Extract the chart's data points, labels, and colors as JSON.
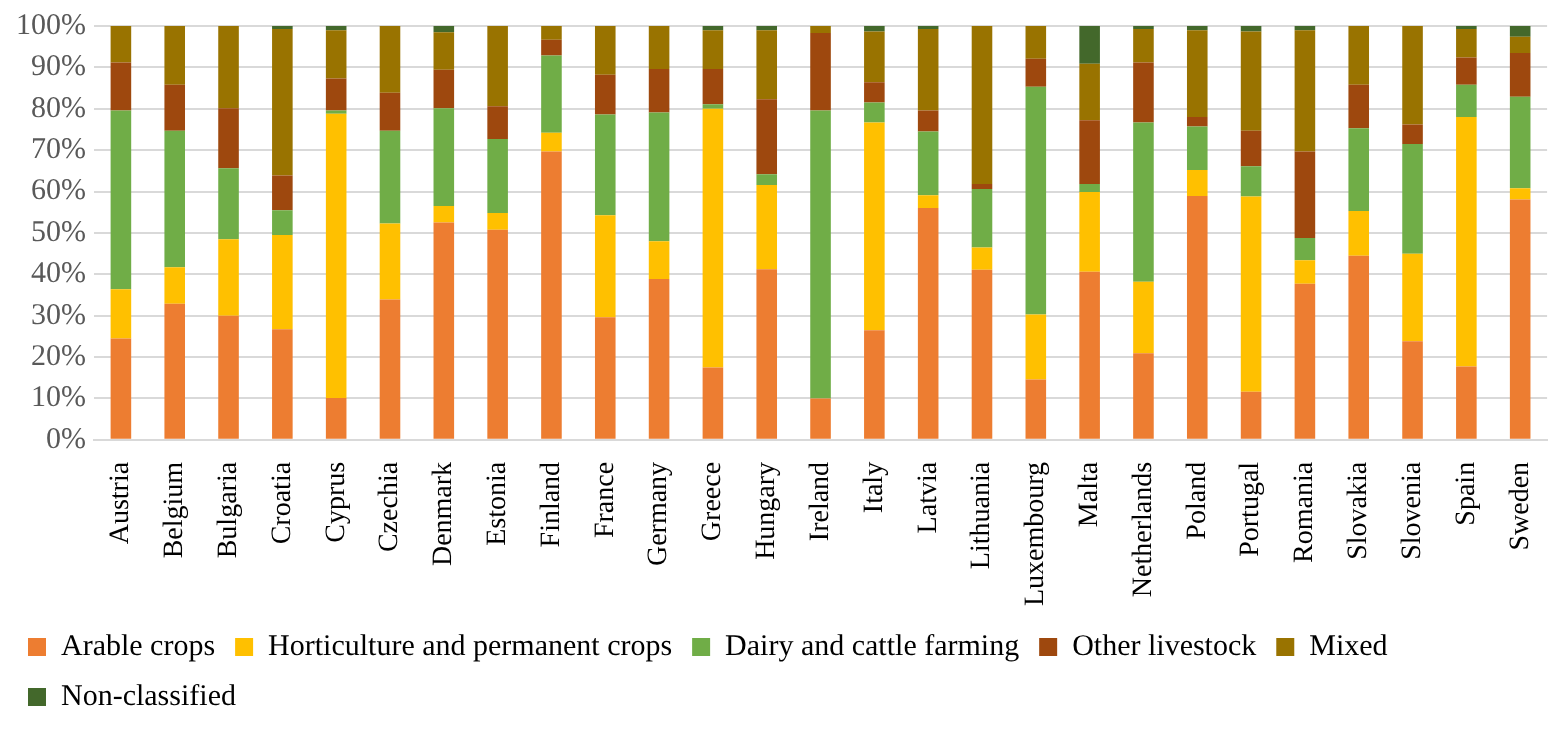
{
  "chart_data": {
    "type": "bar",
    "stacked": true,
    "grid": "y",
    "legend": "bottom",
    "categories": [
      "Austria",
      "Belgium",
      "Bulgaria",
      "Croatia",
      "Cyprus",
      "Czechia",
      "Denmark",
      "Estonia",
      "Finland",
      "France",
      "Germany",
      "Greece",
      "Hungary",
      "Ireland",
      "Italy",
      "Latvia",
      "Lithuania",
      "Luxembourg",
      "Malta",
      "Netherlands",
      "Poland",
      "Portugal",
      "Romania",
      "Slovakia",
      "Slovenia",
      "Spain",
      "Sweden"
    ],
    "ylim": [
      0,
      100
    ],
    "yticks": [
      {
        "value": 0,
        "label": "0%"
      },
      {
        "value": 10,
        "label": "10%"
      },
      {
        "value": 20,
        "label": "20%"
      },
      {
        "value": 30,
        "label": "30%"
      },
      {
        "value": 40,
        "label": "40%"
      },
      {
        "value": 50,
        "label": "50%"
      },
      {
        "value": 60,
        "label": "60%"
      },
      {
        "value": 70,
        "label": "70%"
      },
      {
        "value": 80,
        "label": "80%"
      },
      {
        "value": 90,
        "label": "90%"
      },
      {
        "value": 100,
        "label": "100%"
      }
    ],
    "series": [
      {
        "name": "Arable crops",
        "color": "#ed7d31",
        "values": [
          24.5,
          32.9,
          30,
          26.7,
          10.1,
          33.9,
          52.5,
          50.8,
          69.7,
          29.6,
          38.9,
          17.5,
          41.2,
          10,
          26.5,
          56,
          41.1,
          14.6,
          40.6,
          20.9,
          58.9,
          11.6,
          37.7,
          44.5,
          23.8,
          17.7,
          58.1
        ]
      },
      {
        "name": "Horticulture and permanent crops",
        "color": "#ffc000",
        "values": [
          11.9,
          8.8,
          18.5,
          22.8,
          68.7,
          18.4,
          4,
          4,
          4.5,
          24.7,
          9.1,
          62.5,
          20.4,
          0,
          50.2,
          3.1,
          5.4,
          15.7,
          19.3,
          17.3,
          6.3,
          47.2,
          5.7,
          10.8,
          21.2,
          60.3,
          2.7
        ]
      },
      {
        "name": "Dairy and cattle farming",
        "color": "#70ad47",
        "values": [
          43.2,
          33,
          17.1,
          6,
          0.8,
          22.4,
          23.6,
          17.9,
          18.7,
          24.3,
          31.1,
          1.1,
          2.6,
          69.6,
          4.8,
          15.4,
          14.1,
          55,
          1.9,
          38.5,
          10.5,
          7.3,
          5.4,
          20,
          26.5,
          7.8,
          22.1
        ]
      },
      {
        "name": "Other livestock",
        "color": "#9e480e",
        "values": [
          11.6,
          11.1,
          14.5,
          8.4,
          7.7,
          9.2,
          9.3,
          7.9,
          3.8,
          9.6,
          10.5,
          8.5,
          18.1,
          18.7,
          4.9,
          5.1,
          1.2,
          6.8,
          15.4,
          14.5,
          2.3,
          8.6,
          20.9,
          10.5,
          4.7,
          6.6,
          10.6
        ]
      },
      {
        "name": "Mixed",
        "color": "#997300",
        "values": [
          8.8,
          14.2,
          19.9,
          35.4,
          11.7,
          16.1,
          9.1,
          19.4,
          3.3,
          11.8,
          10.4,
          9.4,
          16.7,
          1.7,
          12.3,
          19.7,
          38.2,
          7.9,
          13.7,
          8.1,
          21,
          24,
          29.3,
          14.2,
          23.8,
          6.9,
          3.9
        ]
      },
      {
        "name": "Non-classified",
        "color": "#43682b",
        "values": [
          0,
          0,
          0,
          0.7,
          1,
          0,
          1.5,
          0,
          0,
          0,
          0,
          1,
          1,
          0,
          1.3,
          0.7,
          0,
          0,
          9.1,
          0.7,
          1,
          1.3,
          1,
          0,
          0,
          0.7,
          2.6
        ]
      }
    ]
  }
}
